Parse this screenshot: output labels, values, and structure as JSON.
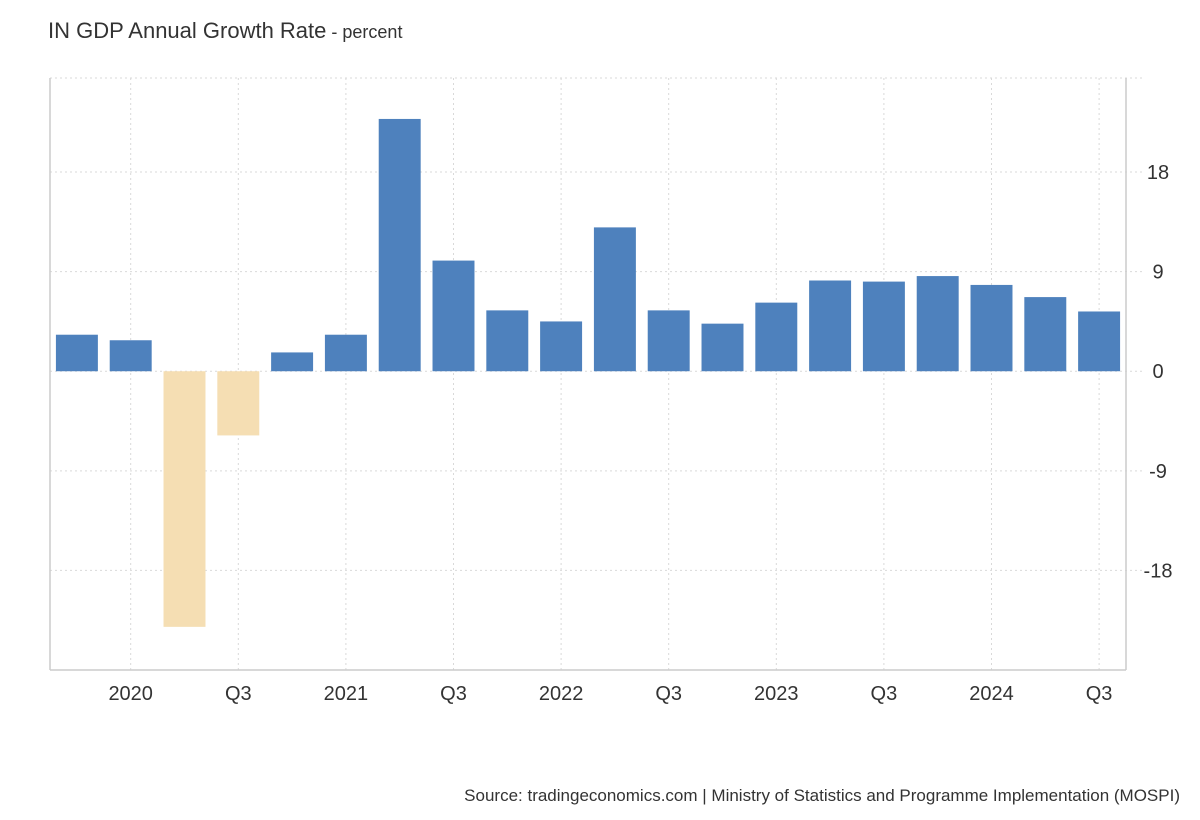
{
  "title": {
    "main": "IN GDP Annual Growth Rate",
    "unit": " - percent"
  },
  "source": "Source: tradingeconomics.com | Ministry of Statistics and Programme Implementation (MOSPI)",
  "colors": {
    "positive_bar": "#4e81bd",
    "negative_bar": "#f5deb3",
    "grid": "#d9d9d9",
    "axis": "#cccccc",
    "text": "#333333"
  },
  "chart_data": {
    "type": "bar",
    "title": "IN GDP Annual Growth Rate",
    "unit": "percent",
    "xlabel": "",
    "ylabel": "",
    "ylim": [
      -27,
      26.5
    ],
    "y_ticks": [
      -18,
      -9,
      0,
      9,
      18
    ],
    "y_axis_side": "right",
    "grid": true,
    "categories": [
      "2019 Q4",
      "2020 Q1",
      "2020 Q2",
      "2020 Q3",
      "2020 Q4",
      "2021 Q1",
      "2021 Q2",
      "2021 Q3",
      "2021 Q4",
      "2022 Q1",
      "2022 Q2",
      "2022 Q3",
      "2022 Q4",
      "2023 Q1",
      "2023 Q2",
      "2023 Q3",
      "2023 Q4",
      "2024 Q1",
      "2024 Q2",
      "2024 Q3"
    ],
    "values": [
      3.3,
      2.8,
      -23.1,
      -5.8,
      1.7,
      3.3,
      22.8,
      10.0,
      5.5,
      4.5,
      13.0,
      5.5,
      4.3,
      6.2,
      8.2,
      8.1,
      8.6,
      7.8,
      6.7,
      5.4
    ],
    "x_tick_labels": [
      {
        "label": "2020",
        "index": 1
      },
      {
        "label": "Q3",
        "index": 3
      },
      {
        "label": "2021",
        "index": 5
      },
      {
        "label": "Q3",
        "index": 7
      },
      {
        "label": "2022",
        "index": 9
      },
      {
        "label": "Q3",
        "index": 11
      },
      {
        "label": "2023",
        "index": 13
      },
      {
        "label": "Q3",
        "index": 15
      },
      {
        "label": "2024",
        "index": 17
      },
      {
        "label": "Q3",
        "index": 19
      }
    ]
  }
}
